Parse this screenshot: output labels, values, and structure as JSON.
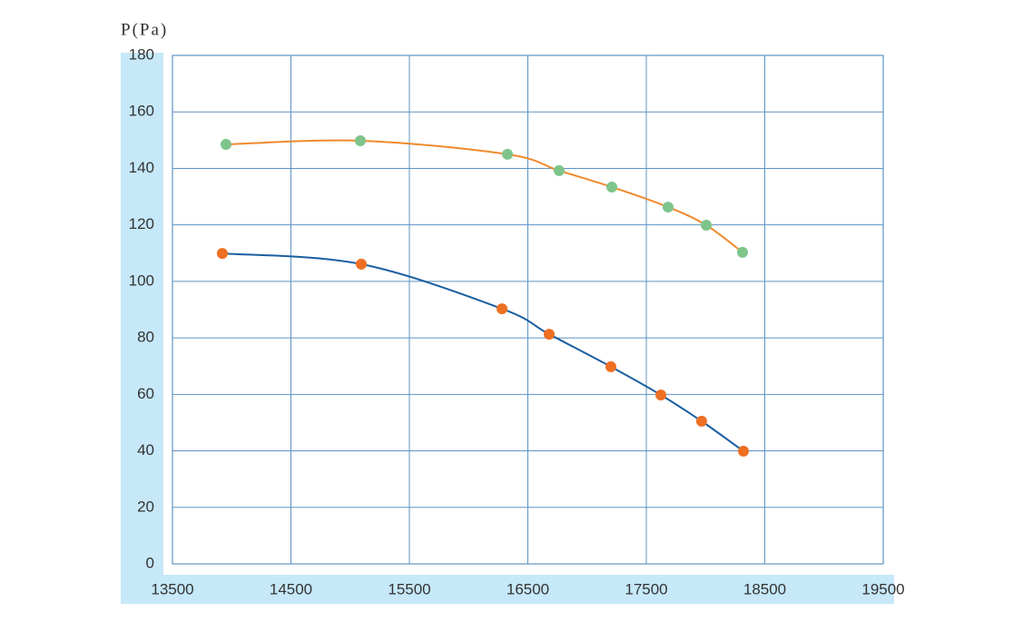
{
  "chart_data": {
    "type": "line",
    "y_label": "P(Pa)",
    "xlim": [
      13500,
      19500
    ],
    "xticks": [
      13500,
      14500,
      15500,
      16500,
      17500,
      18500,
      19500
    ],
    "ylim": [
      0,
      180
    ],
    "yticks": [
      0,
      20,
      40,
      60,
      80,
      100,
      120,
      140,
      160,
      180
    ],
    "grid": true,
    "series": [
      {
        "color": "#7ec48b",
        "line_color": "#f0892d",
        "x": [
          13952,
          15086,
          16328,
          16764,
          17209,
          17684,
          18006,
          18312
        ],
        "values": [
          148.5,
          149.8,
          145.0,
          139.2,
          133.4,
          126.3,
          119.9,
          110.3
        ]
      },
      {
        "color": "#ee6f22",
        "line_color": "#1a5fa0",
        "x": [
          13921,
          15094,
          16282,
          16680,
          17201,
          17623,
          17967,
          18320
        ],
        "values": [
          109.9,
          106.1,
          90.3,
          81.3,
          69.8,
          59.8,
          50.5,
          39.9
        ]
      }
    ]
  }
}
